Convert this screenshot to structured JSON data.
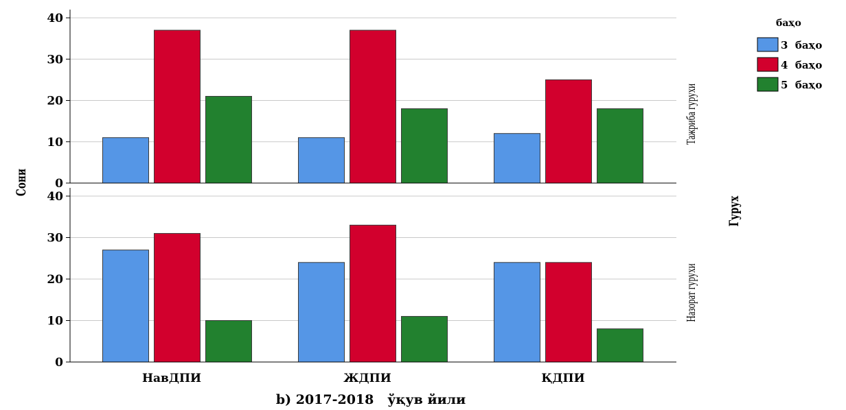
{
  "chart_data": {
    "type": "bar",
    "subtitle": "b) 2017-2018   ўқув йили",
    "ylabel": "Сони",
    "ylim": [
      0,
      40
    ],
    "yticks": [
      0,
      10,
      20,
      30,
      40
    ],
    "grid": true,
    "categories": [
      "НавДПИ",
      "ЖДПИ",
      "ҚДПИ"
    ],
    "row_facet_title": "Гурух",
    "panels": [
      {
        "label": "Тажриба гурухи",
        "series": [
          {
            "name": "3 баҳо",
            "values": [
              11,
              11,
              12
            ]
          },
          {
            "name": "4 баҳо",
            "values": [
              37,
              37,
              25
            ]
          },
          {
            "name": "5 баҳо",
            "values": [
              21,
              18,
              18
            ]
          }
        ]
      },
      {
        "label": "Назорат гурухи",
        "series": [
          {
            "name": "3 баҳо",
            "values": [
              27,
              24,
              24
            ]
          },
          {
            "name": "4 баҳо",
            "values": [
              31,
              33,
              24
            ]
          },
          {
            "name": "5 баҳо",
            "values": [
              10,
              11,
              8
            ]
          }
        ]
      }
    ],
    "legend": {
      "title": "баҳо",
      "placement": "top-right",
      "items": [
        {
          "label": "3 баҳо",
          "color": "#5596e6"
        },
        {
          "label": "4 баҳо",
          "color": "#d2002d"
        },
        {
          "label": "5 баҳо",
          "color": "#22812f"
        }
      ]
    }
  }
}
